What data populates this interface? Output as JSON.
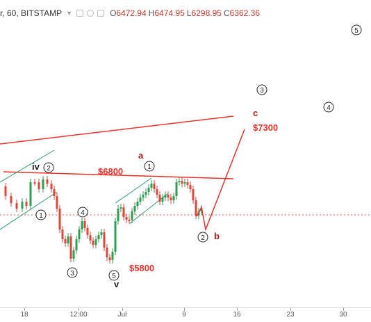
{
  "header": {
    "symbol": "r, 60, BITSTAMP",
    "open_label": "O",
    "open_value": "6472.94",
    "high_label": "H",
    "high_value": "6474.95",
    "low_label": "L",
    "low_value": "6298.95",
    "close_label": "C",
    "close_value": "6362.36"
  },
  "colors": {
    "annotation_red": "#e8322a",
    "label_dark_red": "#b31b1b",
    "candle_up": "#2e9e52",
    "candle_down": "#d9473b",
    "channel_line": "#2a9a6a",
    "dotted_level": "#e05050"
  },
  "annotations": {
    "price_6800": "$6800",
    "price_5800": "$5800",
    "price_7300": "$7300",
    "wave_a": "a",
    "wave_b": "b",
    "wave_c": "c",
    "wave_iv": "iv",
    "wave_v": "v",
    "circled": [
      "1",
      "2",
      "3",
      "4",
      "5",
      "1",
      "2",
      "3",
      "4",
      "5"
    ]
  },
  "xaxis": {
    "ticks": [
      "18",
      "12:00",
      "Jul",
      "9",
      "16",
      "23",
      "30"
    ]
  }
}
